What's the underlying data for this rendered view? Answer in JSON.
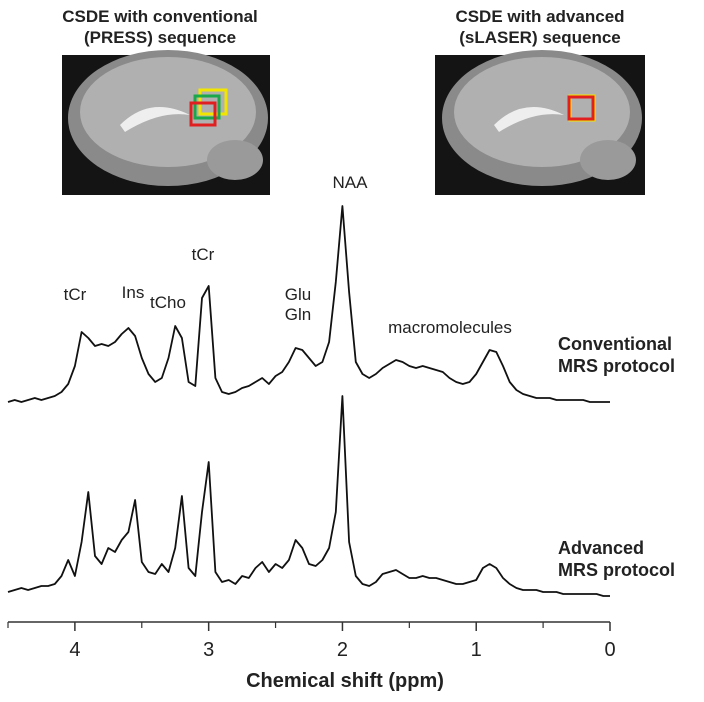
{
  "chart_data": {
    "type": "line",
    "image_titles": [
      "CSDE with conventional (PRESS) sequence",
      "CSDE with advanced (sLASER) sequence"
    ],
    "xlabel": "Chemical shift (ppm)",
    "xlim": [
      4.5,
      0
    ],
    "ylim": [
      0,
      100
    ],
    "xticks": [
      4,
      3,
      2,
      1,
      0
    ],
    "xminor_ticks": [
      4.5,
      3.5,
      2.5,
      1.5,
      0.5
    ],
    "annotations": [
      "tCr",
      "Ins",
      "tCho",
      "tCr",
      "Glu",
      "Gln",
      "NAA",
      "macromolecules"
    ],
    "x": [
      4.5,
      4.45,
      4.4,
      4.35,
      4.3,
      4.25,
      4.2,
      4.15,
      4.1,
      4.05,
      4,
      3.95,
      3.9,
      3.85,
      3.8,
      3.75,
      3.7,
      3.65,
      3.6,
      3.55,
      3.5,
      3.45,
      3.4,
      3.35,
      3.3,
      3.25,
      3.2,
      3.15,
      3.1,
      3.05,
      3,
      2.95,
      2.9,
      2.85,
      2.8,
      2.75,
      2.7,
      2.65,
      2.6,
      2.55,
      2.5,
      2.45,
      2.4,
      2.35,
      2.3,
      2.25,
      2.2,
      2.15,
      2.1,
      2.05,
      2,
      1.95,
      1.9,
      1.85,
      1.8,
      1.75,
      1.7,
      1.65,
      1.6,
      1.55,
      1.5,
      1.45,
      1.4,
      1.35,
      1.3,
      1.25,
      1.2,
      1.15,
      1.1,
      1.05,
      1,
      0.95,
      0.9,
      0.85,
      0.8,
      0.75,
      0.7,
      0.65,
      0.6,
      0.55,
      0.5,
      0.45,
      0.4,
      0.35,
      0.3,
      0.25,
      0.2,
      0.15,
      0.1,
      0.05,
      0
    ],
    "series": [
      {
        "name": "Conventional MRS protocol",
        "color": "#111111",
        "values": [
          0,
          1,
          0,
          1,
          2,
          1,
          2,
          3,
          5,
          9,
          18,
          35,
          32,
          28,
          29,
          28,
          30,
          34,
          37,
          33,
          22,
          14,
          10,
          12,
          22,
          38,
          32,
          10,
          8,
          52,
          58,
          12,
          5,
          4,
          5,
          7,
          8,
          10,
          12,
          9,
          13,
          15,
          20,
          27,
          26,
          22,
          18,
          20,
          30,
          60,
          98,
          55,
          20,
          14,
          12,
          14,
          17,
          19,
          21,
          20,
          18,
          17,
          18,
          17,
          16,
          15,
          12,
          10,
          9,
          10,
          14,
          20,
          26,
          25,
          18,
          10,
          6,
          4,
          3,
          2,
          2,
          2,
          1,
          1,
          1,
          1,
          1,
          0,
          0,
          0,
          0
        ]
      },
      {
        "name": "Advanced MRS protocol",
        "color": "#111111",
        "values": [
          0,
          1,
          2,
          1,
          2,
          3,
          3,
          4,
          8,
          16,
          8,
          25,
          50,
          18,
          14,
          22,
          20,
          26,
          30,
          46,
          15,
          10,
          9,
          14,
          10,
          22,
          48,
          12,
          8,
          40,
          65,
          10,
          5,
          6,
          4,
          8,
          7,
          12,
          15,
          10,
          14,
          12,
          16,
          26,
          22,
          14,
          13,
          16,
          22,
          40,
          98,
          25,
          8,
          4,
          3,
          5,
          9,
          10,
          11,
          9,
          7,
          7,
          8,
          7,
          7,
          6,
          5,
          4,
          4,
          5,
          6,
          12,
          14,
          12,
          7,
          4,
          2,
          1,
          1,
          1,
          0,
          0,
          0,
          -1,
          -1,
          -1,
          -1,
          -1,
          -1,
          -2,
          -2
        ]
      }
    ]
  }
}
